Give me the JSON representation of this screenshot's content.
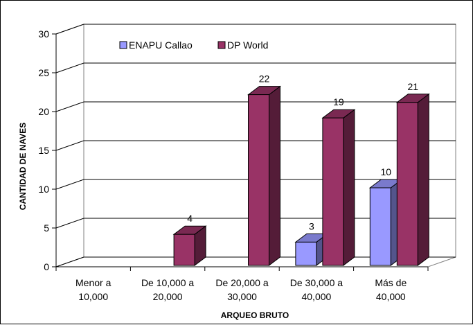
{
  "chart_data": {
    "type": "bar",
    "categories": [
      "Menor a 10,000",
      "De 10,000 a 20,000",
      "De 20,000 a 30,000",
      "De 30,000 a 40,000",
      "Más de 40,000"
    ],
    "category_lines": [
      [
        "Menor a",
        "10,000"
      ],
      [
        "De 10,000 a",
        "20,000"
      ],
      [
        "De 20,000 a",
        "30,000"
      ],
      [
        "De 30,000 a",
        "40,000"
      ],
      [
        "Más de",
        "40,000"
      ]
    ],
    "series": [
      {
        "name": "ENAPU Callao",
        "values": [
          0,
          0,
          0,
          3,
          10
        ],
        "color": "#9999FF"
      },
      {
        "name": "DP World",
        "values": [
          0,
          4,
          22,
          19,
          21
        ],
        "color": "#993366"
      }
    ],
    "xlabel": "ARQUEO BRUTO",
    "ylabel": "CANTIDAD DE NAVES",
    "ylim": [
      0,
      30
    ],
    "yticks": [
      0,
      5,
      10,
      15,
      20,
      25,
      30
    ],
    "grid": true,
    "legend": "top",
    "style": "3d-column"
  }
}
